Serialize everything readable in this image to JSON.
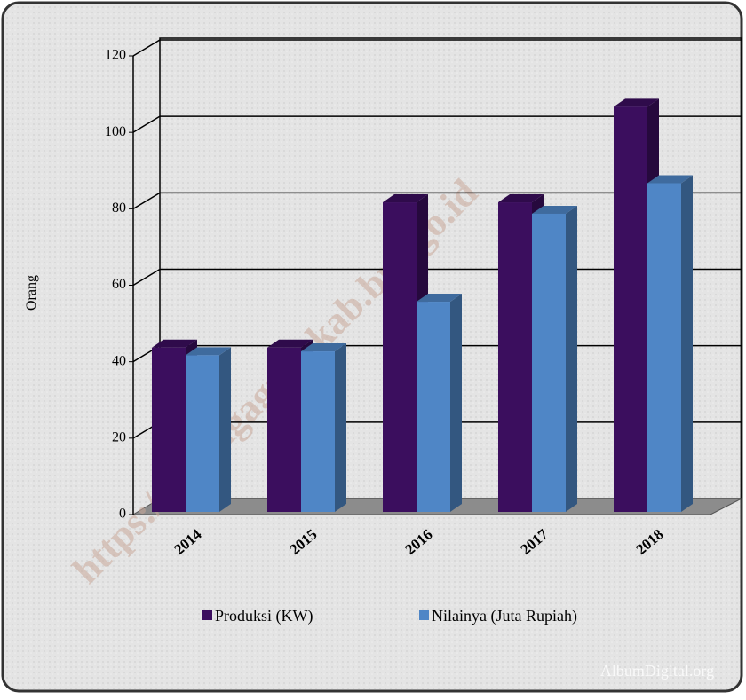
{
  "chart_data": {
    "type": "bar",
    "y_label": "Orang",
    "categories": [
      "2014",
      "2015",
      "2016",
      "2017",
      "2018"
    ],
    "series": [
      {
        "name": "Produksi (KW)",
        "color": "#3b0e5e",
        "values": [
          43,
          43,
          81,
          81,
          106
        ]
      },
      {
        "name": "Nilainya (Juta Rupiah)",
        "color": "#4f86c6",
        "values": [
          41,
          42,
          55,
          78,
          86
        ]
      }
    ],
    "ylim": [
      0,
      120
    ],
    "yticks": [
      0,
      20,
      40,
      60,
      80,
      100,
      120
    ],
    "grid": true,
    "legend": "bottom",
    "watermark": "https://tulungagungkab.bps.go.id",
    "credit": "AlbumDigital.org"
  }
}
